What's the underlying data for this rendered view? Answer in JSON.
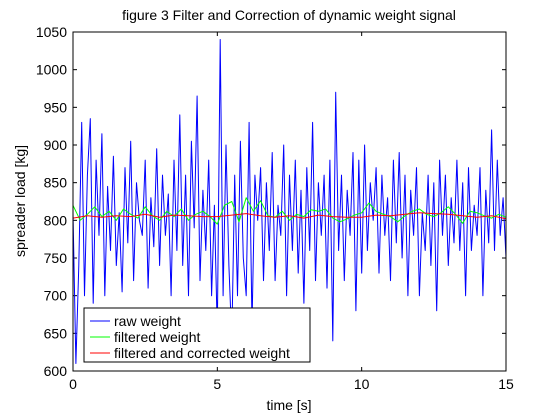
{
  "chart_data": {
    "type": "line",
    "title": "figure 3 Filter and Correction of dynamic weight signal",
    "xlabel": "time [s]",
    "ylabel": "spreader load [kg]",
    "xlim": [
      0,
      15
    ],
    "ylim": [
      600,
      1050
    ],
    "xticks": [
      0,
      5,
      10,
      15
    ],
    "xtick_labels": [
      "0",
      "5",
      "10",
      "15"
    ],
    "yticks": [
      600,
      650,
      700,
      750,
      800,
      850,
      900,
      950,
      1000,
      1050
    ],
    "ytick_labels": [
      "600",
      "650",
      "700",
      "750",
      "800",
      "850",
      "900",
      "950",
      "1000",
      "1050"
    ],
    "grid": false,
    "legend_position": "bottom-left",
    "series": [
      {
        "name": "raw weight",
        "color": "#0000ff",
        "x": [
          0,
          0.1,
          0.2,
          0.3,
          0.4,
          0.5,
          0.6,
          0.7,
          0.8,
          0.9,
          1.0,
          1.1,
          1.2,
          1.3,
          1.4,
          1.5,
          1.6,
          1.7,
          1.8,
          1.9,
          2.0,
          2.1,
          2.2,
          2.3,
          2.4,
          2.5,
          2.6,
          2.7,
          2.8,
          2.9,
          3.0,
          3.1,
          3.2,
          3.3,
          3.4,
          3.5,
          3.6,
          3.7,
          3.8,
          3.9,
          4.0,
          4.1,
          4.2,
          4.3,
          4.4,
          4.5,
          4.6,
          4.7,
          4.8,
          4.9,
          5.0,
          5.1,
          5.2,
          5.3,
          5.4,
          5.5,
          5.6,
          5.7,
          5.8,
          5.9,
          6.0,
          6.1,
          6.2,
          6.3,
          6.4,
          6.5,
          6.6,
          6.7,
          6.8,
          6.9,
          7.0,
          7.1,
          7.2,
          7.3,
          7.4,
          7.5,
          7.6,
          7.7,
          7.8,
          7.9,
          8.0,
          8.1,
          8.2,
          8.3,
          8.4,
          8.5,
          8.6,
          8.7,
          8.8,
          8.9,
          9.0,
          9.1,
          9.2,
          9.3,
          9.4,
          9.5,
          9.6,
          9.7,
          9.8,
          9.9,
          10.0,
          10.1,
          10.2,
          10.3,
          10.4,
          10.5,
          10.6,
          10.7,
          10.8,
          10.9,
          11.0,
          11.1,
          11.2,
          11.3,
          11.4,
          11.5,
          11.6,
          11.7,
          11.8,
          11.9,
          12.0,
          12.1,
          12.2,
          12.3,
          12.4,
          12.5,
          12.6,
          12.7,
          12.8,
          12.9,
          13.0,
          13.1,
          13.2,
          13.3,
          13.4,
          13.5,
          13.6,
          13.7,
          13.8,
          13.9,
          14.0,
          14.1,
          14.2,
          14.3,
          14.4,
          14.5,
          14.6,
          14.7,
          14.8,
          14.9,
          15.0
        ],
        "y": [
          810,
          610,
          740,
          930,
          700,
          860,
          935,
          690,
          880,
          780,
          915,
          700,
          845,
          760,
          885,
          740,
          810,
          705,
          870,
          770,
          905,
          720,
          850,
          800,
          780,
          880,
          710,
          830,
          765,
          895,
          740,
          860,
          780,
          835,
          700,
          880,
          760,
          940,
          740,
          860,
          700,
          905,
          790,
          965,
          720,
          840,
          760,
          880,
          700,
          820,
          650,
          1040,
          700,
          900,
          740,
          640,
          860,
          700,
          905,
          750,
          700,
          930,
          660,
          860,
          800,
          870,
          720,
          850,
          760,
          890,
          720,
          820,
          780,
          900,
          700,
          860,
          760,
          880,
          730,
          840,
          690,
          870,
          760,
          930,
          720,
          850,
          780,
          860,
          710,
          880,
          640,
          970,
          760,
          860,
          720,
          840,
          780,
          890,
          680,
          880,
          730,
          900,
          760,
          850,
          800,
          870,
          730,
          860,
          780,
          830,
          720,
          880,
          770,
          890,
          750,
          860,
          700,
          840,
          780,
          870,
          700,
          810,
          760,
          860,
          740,
          850,
          680,
          880,
          780,
          860,
          740,
          830,
          770,
          880,
          760,
          850,
          700,
          870,
          760,
          820,
          780,
          870,
          700,
          840,
          770,
          920,
          760,
          880,
          780,
          830,
          750
        ]
      },
      {
        "name": "filtered weight",
        "color": "#00ff00",
        "x": [
          0,
          0.25,
          0.5,
          0.75,
          1.0,
          1.25,
          1.5,
          1.75,
          2.0,
          2.25,
          2.5,
          2.75,
          3.0,
          3.25,
          3.5,
          3.75,
          4.0,
          4.25,
          4.5,
          4.75,
          5.0,
          5.25,
          5.5,
          5.75,
          6.0,
          6.25,
          6.5,
          6.75,
          7.0,
          7.25,
          7.5,
          7.75,
          8.0,
          8.25,
          8.5,
          8.75,
          9.0,
          9.25,
          9.5,
          9.75,
          10.0,
          10.25,
          10.5,
          10.75,
          11.0,
          11.25,
          11.5,
          11.75,
          12.0,
          12.25,
          12.5,
          12.75,
          13.0,
          13.25,
          13.5,
          13.75,
          14.0,
          14.25,
          14.5,
          14.75,
          15.0
        ],
        "y": [
          820,
          800,
          808,
          818,
          805,
          812,
          800,
          815,
          808,
          803,
          818,
          806,
          800,
          812,
          805,
          815,
          800,
          808,
          812,
          805,
          795,
          820,
          825,
          798,
          830,
          812,
          826,
          806,
          804,
          812,
          800,
          808,
          805,
          814,
          812,
          815,
          803,
          798,
          802,
          807,
          810,
          823,
          812,
          808,
          805,
          798,
          806,
          812,
          815,
          808,
          805,
          810,
          818,
          808,
          796,
          812,
          810,
          806,
          803,
          808,
          804
        ]
      },
      {
        "name": "filtered and corrected weight",
        "color": "#ff0000",
        "x": [
          0,
          0.5,
          1.0,
          1.5,
          2.0,
          2.5,
          3.0,
          3.5,
          4.0,
          4.5,
          5.0,
          5.5,
          6.0,
          6.5,
          7.0,
          7.5,
          8.0,
          8.5,
          9.0,
          9.5,
          10.0,
          10.5,
          11.0,
          11.5,
          12.0,
          12.5,
          13.0,
          13.5,
          14.0,
          14.5,
          15.0
        ],
        "y": [
          803,
          806,
          804,
          806,
          805,
          808,
          804,
          807,
          806,
          805,
          805,
          807,
          809,
          806,
          804,
          806,
          803,
          807,
          805,
          804,
          804,
          807,
          806,
          808,
          810,
          809,
          808,
          806,
          804,
          806,
          802
        ]
      }
    ]
  }
}
